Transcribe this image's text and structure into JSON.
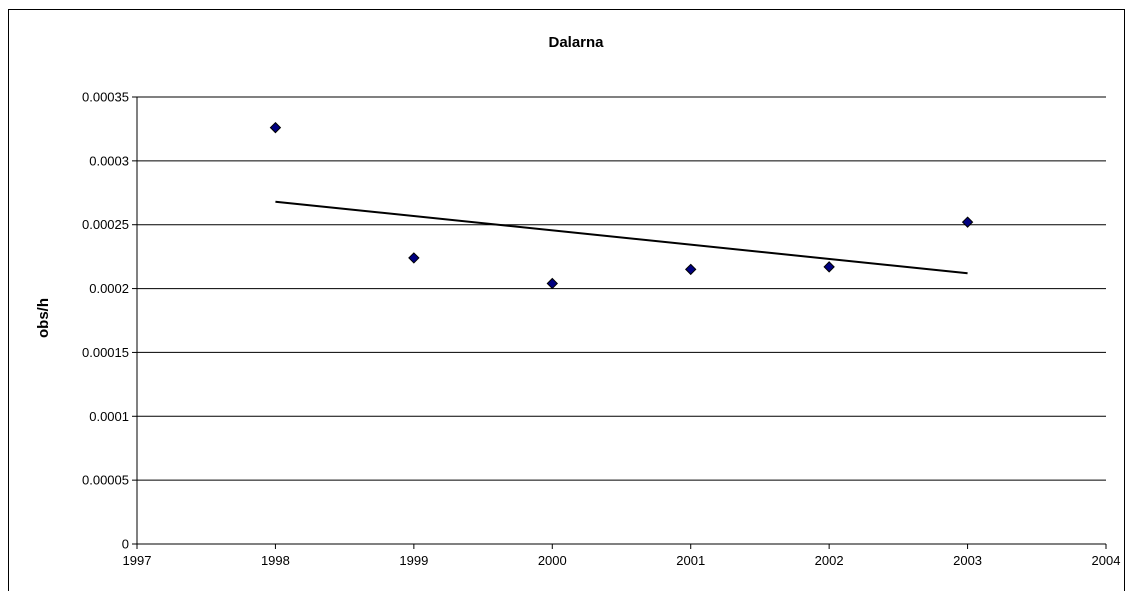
{
  "chart_data": {
    "type": "scatter",
    "title": "Dalarna",
    "xlabel": "",
    "ylabel": "obs/h",
    "xlim": [
      1997,
      2004
    ],
    "ylim": [
      0,
      0.00035
    ],
    "x_ticks": [
      "1997",
      "1998",
      "1999",
      "2000",
      "2001",
      "2002",
      "2003",
      "2004"
    ],
    "y_ticks": [
      "0",
      "0.00005",
      "0.0001",
      "0.00015",
      "0.0002",
      "0.00025",
      "0.0003",
      "0.00035"
    ],
    "grid": true,
    "legend": "none",
    "marker_color": "#000080",
    "series": [
      {
        "x": [
          1998,
          1999,
          2000,
          2001,
          2002,
          2003
        ],
        "y": [
          0.000326,
          0.000224,
          0.000204,
          0.000215,
          0.000217,
          0.000252
        ]
      }
    ],
    "trendline": {
      "type": "linear",
      "x": [
        1998,
        2003
      ],
      "y": [
        0.000268,
        0.000212
      ]
    }
  }
}
